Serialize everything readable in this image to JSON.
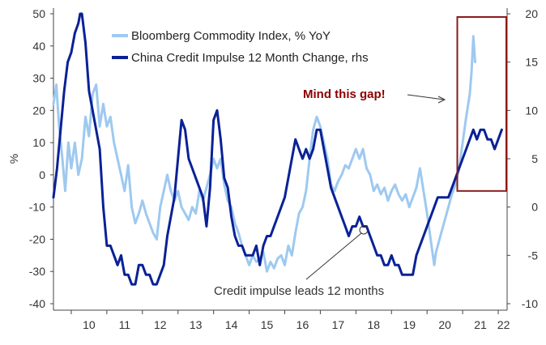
{
  "chart_data": {
    "type": "line",
    "title": "",
    "ylabel_left": "%",
    "ylabel_right": "",
    "xlabel": "",
    "x_domain": [
      2009.5,
      2022.25
    ],
    "ylim_left": [
      -40,
      50
    ],
    "ylim_right": [
      -10,
      20
    ],
    "x_ticks": [
      "10",
      "11",
      "12",
      "13",
      "14",
      "15",
      "16",
      "17",
      "18",
      "19",
      "20",
      "21",
      "22"
    ],
    "y_ticks_left": [
      "50",
      "40",
      "30",
      "20",
      "10",
      "0",
      "-10",
      "-20",
      "-30",
      "-40"
    ],
    "y_ticks_right": [
      "20",
      "15",
      "10",
      "5",
      "0",
      "-5",
      "-10"
    ],
    "series": [
      {
        "name": "Bloomberg Commodity Index, % YoY",
        "axis": "left",
        "color": "#9ec9f0",
        "points": [
          [
            2009.5,
            22
          ],
          [
            2009.58,
            28
          ],
          [
            2009.66,
            15
          ],
          [
            2009.75,
            5
          ],
          [
            2009.83,
            -5
          ],
          [
            2009.92,
            10
          ],
          [
            2010.0,
            2
          ],
          [
            2010.1,
            10
          ],
          [
            2010.2,
            0
          ],
          [
            2010.3,
            5
          ],
          [
            2010.4,
            18
          ],
          [
            2010.5,
            12
          ],
          [
            2010.6,
            25
          ],
          [
            2010.7,
            28
          ],
          [
            2010.8,
            15
          ],
          [
            2010.9,
            22
          ],
          [
            2011.0,
            15
          ],
          [
            2011.1,
            18
          ],
          [
            2011.2,
            10
          ],
          [
            2011.3,
            5
          ],
          [
            2011.4,
            0
          ],
          [
            2011.5,
            -5
          ],
          [
            2011.6,
            3
          ],
          [
            2011.7,
            -10
          ],
          [
            2011.8,
            -15
          ],
          [
            2011.9,
            -12
          ],
          [
            2012.0,
            -8
          ],
          [
            2012.1,
            -12
          ],
          [
            2012.2,
            -15
          ],
          [
            2012.3,
            -18
          ],
          [
            2012.4,
            -20
          ],
          [
            2012.5,
            -10
          ],
          [
            2012.6,
            -5
          ],
          [
            2012.7,
            0
          ],
          [
            2012.8,
            -5
          ],
          [
            2012.9,
            -8
          ],
          [
            2013.0,
            -5
          ],
          [
            2013.1,
            -10
          ],
          [
            2013.2,
            -12
          ],
          [
            2013.3,
            -14
          ],
          [
            2013.4,
            -10
          ],
          [
            2013.5,
            -12
          ],
          [
            2013.6,
            -5
          ],
          [
            2013.7,
            -8
          ],
          [
            2013.8,
            -4
          ],
          [
            2013.9,
            0
          ],
          [
            2014.0,
            5
          ],
          [
            2014.1,
            2
          ],
          [
            2014.2,
            5
          ],
          [
            2014.3,
            -3
          ],
          [
            2014.4,
            -8
          ],
          [
            2014.5,
            -10
          ],
          [
            2014.6,
            -15
          ],
          [
            2014.7,
            -18
          ],
          [
            2014.8,
            -22
          ],
          [
            2014.9,
            -25
          ],
          [
            2015.0,
            -28
          ],
          [
            2015.1,
            -25
          ],
          [
            2015.2,
            -27
          ],
          [
            2015.3,
            -26
          ],
          [
            2015.4,
            -24
          ],
          [
            2015.5,
            -30
          ],
          [
            2015.6,
            -27
          ],
          [
            2015.7,
            -29
          ],
          [
            2015.8,
            -26
          ],
          [
            2015.9,
            -25
          ],
          [
            2016.0,
            -28
          ],
          [
            2016.1,
            -22
          ],
          [
            2016.2,
            -25
          ],
          [
            2016.3,
            -18
          ],
          [
            2016.4,
            -12
          ],
          [
            2016.5,
            -10
          ],
          [
            2016.6,
            -5
          ],
          [
            2016.7,
            5
          ],
          [
            2016.8,
            14
          ],
          [
            2016.9,
            18
          ],
          [
            2017.0,
            15
          ],
          [
            2017.1,
            10
          ],
          [
            2017.2,
            5
          ],
          [
            2017.3,
            -3
          ],
          [
            2017.4,
            -5
          ],
          [
            2017.5,
            -2
          ],
          [
            2017.6,
            0
          ],
          [
            2017.7,
            3
          ],
          [
            2017.8,
            2
          ],
          [
            2017.9,
            5
          ],
          [
            2018.0,
            8
          ],
          [
            2018.1,
            5
          ],
          [
            2018.2,
            8
          ],
          [
            2018.3,
            2
          ],
          [
            2018.4,
            0
          ],
          [
            2018.5,
            -5
          ],
          [
            2018.6,
            -3
          ],
          [
            2018.7,
            -6
          ],
          [
            2018.8,
            -4
          ],
          [
            2018.9,
            -8
          ],
          [
            2019.0,
            -5
          ],
          [
            2019.1,
            -3
          ],
          [
            2019.2,
            -6
          ],
          [
            2019.3,
            -8
          ],
          [
            2019.4,
            -6
          ],
          [
            2019.5,
            -10
          ],
          [
            2019.6,
            -7
          ],
          [
            2019.7,
            -4
          ],
          [
            2019.8,
            2
          ],
          [
            2019.9,
            -5
          ],
          [
            2020.0,
            -12
          ],
          [
            2020.1,
            -20
          ],
          [
            2020.2,
            -28
          ],
          [
            2020.25,
            -24
          ],
          [
            2020.3,
            -22
          ],
          [
            2020.4,
            -18
          ],
          [
            2020.5,
            -14
          ],
          [
            2020.6,
            -10
          ],
          [
            2020.7,
            -6
          ],
          [
            2020.8,
            -3
          ],
          [
            2020.9,
            2
          ],
          [
            2021.0,
            10
          ],
          [
            2021.1,
            18
          ],
          [
            2021.2,
            25
          ],
          [
            2021.25,
            32
          ],
          [
            2021.3,
            43
          ],
          [
            2021.35,
            35
          ]
        ]
      },
      {
        "name": "China Credit Impulse 12 Month Change, rhs",
        "axis": "right",
        "color": "#0a2196",
        "points": [
          [
            2009.5,
            1
          ],
          [
            2009.6,
            4
          ],
          [
            2009.7,
            8
          ],
          [
            2009.8,
            12
          ],
          [
            2009.9,
            15
          ],
          [
            2010.0,
            16
          ],
          [
            2010.1,
            18
          ],
          [
            2010.2,
            19
          ],
          [
            2010.25,
            20
          ],
          [
            2010.3,
            20
          ],
          [
            2010.4,
            17
          ],
          [
            2010.5,
            12
          ],
          [
            2010.6,
            10
          ],
          [
            2010.7,
            8
          ],
          [
            2010.8,
            6
          ],
          [
            2010.9,
            0
          ],
          [
            2011.0,
            -4
          ],
          [
            2011.1,
            -4
          ],
          [
            2011.2,
            -5
          ],
          [
            2011.3,
            -6
          ],
          [
            2011.4,
            -5
          ],
          [
            2011.5,
            -7
          ],
          [
            2011.6,
            -7
          ],
          [
            2011.7,
            -8
          ],
          [
            2011.8,
            -8
          ],
          [
            2011.9,
            -6
          ],
          [
            2012.0,
            -6
          ],
          [
            2012.1,
            -7
          ],
          [
            2012.2,
            -7
          ],
          [
            2012.3,
            -8
          ],
          [
            2012.4,
            -8
          ],
          [
            2012.5,
            -7
          ],
          [
            2012.6,
            -6
          ],
          [
            2012.7,
            -3
          ],
          [
            2012.8,
            -1
          ],
          [
            2012.9,
            1
          ],
          [
            2013.0,
            5
          ],
          [
            2013.1,
            9
          ],
          [
            2013.2,
            8
          ],
          [
            2013.3,
            5
          ],
          [
            2013.4,
            4
          ],
          [
            2013.5,
            3
          ],
          [
            2013.6,
            2
          ],
          [
            2013.7,
            1
          ],
          [
            2013.8,
            -2
          ],
          [
            2013.9,
            2
          ],
          [
            2014.0,
            9
          ],
          [
            2014.1,
            10
          ],
          [
            2014.2,
            7
          ],
          [
            2014.3,
            3
          ],
          [
            2014.4,
            2
          ],
          [
            2014.5,
            -1
          ],
          [
            2014.6,
            -3
          ],
          [
            2014.7,
            -4
          ],
          [
            2014.8,
            -4
          ],
          [
            2014.9,
            -5
          ],
          [
            2015.0,
            -5
          ],
          [
            2015.1,
            -5
          ],
          [
            2015.2,
            -4
          ],
          [
            2015.3,
            -6
          ],
          [
            2015.4,
            -4
          ],
          [
            2015.5,
            -3
          ],
          [
            2015.6,
            -3
          ],
          [
            2015.7,
            -2
          ],
          [
            2015.8,
            -1
          ],
          [
            2015.9,
            0
          ],
          [
            2016.0,
            1
          ],
          [
            2016.1,
            3
          ],
          [
            2016.2,
            5
          ],
          [
            2016.3,
            7
          ],
          [
            2016.4,
            6
          ],
          [
            2016.5,
            5
          ],
          [
            2016.6,
            6
          ],
          [
            2016.7,
            5
          ],
          [
            2016.8,
            6
          ],
          [
            2016.9,
            8
          ],
          [
            2017.0,
            8
          ],
          [
            2017.1,
            6
          ],
          [
            2017.2,
            4
          ],
          [
            2017.3,
            2
          ],
          [
            2017.4,
            1
          ],
          [
            2017.5,
            0
          ],
          [
            2017.6,
            -1
          ],
          [
            2017.7,
            -2
          ],
          [
            2017.8,
            -3
          ],
          [
            2017.9,
            -2
          ],
          [
            2018.0,
            -2
          ],
          [
            2018.1,
            -1
          ],
          [
            2018.2,
            -2
          ],
          [
            2018.3,
            -2
          ],
          [
            2018.4,
            -3
          ],
          [
            2018.5,
            -4
          ],
          [
            2018.6,
            -5
          ],
          [
            2018.7,
            -5
          ],
          [
            2018.8,
            -6
          ],
          [
            2018.9,
            -6
          ],
          [
            2019.0,
            -5
          ],
          [
            2019.1,
            -6
          ],
          [
            2019.2,
            -6
          ],
          [
            2019.3,
            -7
          ],
          [
            2019.4,
            -7
          ],
          [
            2019.5,
            -7
          ],
          [
            2019.6,
            -7
          ],
          [
            2019.7,
            -5
          ],
          [
            2019.8,
            -4
          ],
          [
            2019.9,
            -3
          ],
          [
            2020.0,
            -2
          ],
          [
            2020.1,
            -1
          ],
          [
            2020.2,
            0
          ],
          [
            2020.3,
            1
          ],
          [
            2020.4,
            1
          ],
          [
            2020.5,
            1
          ],
          [
            2020.6,
            1
          ],
          [
            2020.7,
            2
          ],
          [
            2020.8,
            3
          ],
          [
            2020.9,
            4
          ],
          [
            2021.0,
            5
          ],
          [
            2021.1,
            6
          ],
          [
            2021.2,
            7
          ],
          [
            2021.3,
            8
          ],
          [
            2021.4,
            7
          ],
          [
            2021.5,
            8
          ],
          [
            2021.6,
            8
          ],
          [
            2021.7,
            7
          ],
          [
            2021.8,
            7
          ],
          [
            2021.9,
            6
          ],
          [
            2022.0,
            7
          ],
          [
            2022.1,
            8
          ]
        ]
      }
    ],
    "annotations": [
      {
        "id": "mind-gap",
        "text": "Mind this gap!",
        "color": "#8b0000"
      },
      {
        "id": "credit-lead",
        "text": "Credit impulse leads 12 months"
      }
    ],
    "highlight_box": {
      "x_range": [
        2020.85,
        2022.35
      ],
      "y_range_left": [
        -5,
        49
      ],
      "color": "#8b1a1a"
    },
    "legend_position": "top-left",
    "grid": false
  }
}
